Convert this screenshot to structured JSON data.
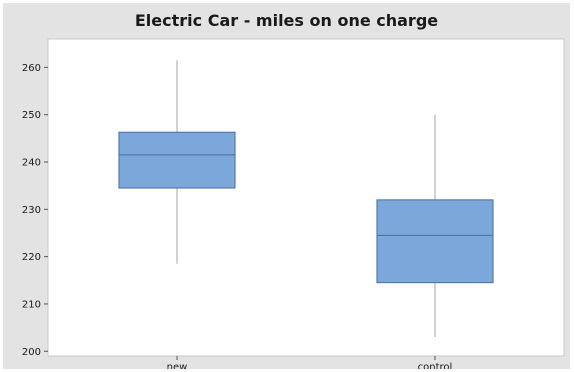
{
  "chart_data": {
    "type": "boxplot",
    "title": "Electric Car - miles on one charge",
    "xlabel": "",
    "ylabel": "",
    "ylim": [
      199,
      266
    ],
    "yticks": [
      200,
      210,
      220,
      230,
      240,
      250,
      260
    ],
    "grid": false,
    "categories": [
      "new",
      "control"
    ],
    "boxes": [
      {
        "category": "new",
        "whisker_low": 218.5,
        "q1": 234.5,
        "median": 241.5,
        "q3": 246.3,
        "whisker_high": 261.5
      },
      {
        "category": "control",
        "whisker_low": 203,
        "q1": 214.5,
        "median": 224.5,
        "q3": 232,
        "whisker_high": 250
      }
    ],
    "colors": {
      "box_fill": "#7ba7db",
      "box_stroke": "#4a6d9c",
      "whisker": "#b4b4b4",
      "median": "#4a6d9c"
    }
  }
}
